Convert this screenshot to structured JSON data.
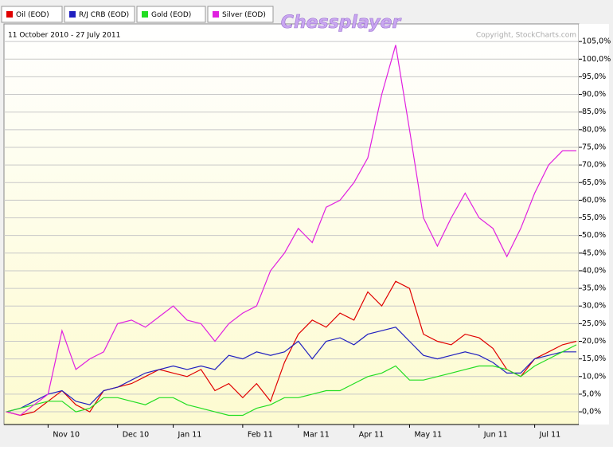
{
  "chart_data": {
    "type": "line",
    "title": "Chessplayer",
    "subtitle": "11 October 2010 - 27 July 2011",
    "annotations": [
      "Copyright, StockCharts.com"
    ],
    "categories": [
      null,
      null,
      null,
      "Nov 10",
      null,
      null,
      null,
      null,
      "Dec 10",
      null,
      null,
      null,
      "Jan 11",
      null,
      null,
      null,
      null,
      "Feb 11",
      null,
      null,
      null,
      "Mar 11",
      null,
      null,
      null,
      "Apr 11",
      null,
      null,
      null,
      "May 11",
      null,
      null,
      null,
      null,
      "Jun 11",
      null,
      null,
      null,
      "Jul 11",
      null,
      null,
      null
    ],
    "series": [
      {
        "name": "Oil (EOD)",
        "color": "#e00000",
        "values": [
          0,
          -1,
          0,
          3,
          6,
          2,
          0,
          6,
          7,
          8,
          10,
          12,
          11,
          10,
          12,
          6,
          8,
          4,
          8,
          3,
          14,
          22,
          26,
          24,
          28,
          26,
          34,
          30,
          37,
          35,
          22,
          20,
          19,
          22,
          21,
          18,
          12,
          10,
          15,
          17,
          19,
          20
        ]
      },
      {
        "name": "R/J CRB (EOD)",
        "color": "#2020c0",
        "values": [
          0,
          1,
          3,
          5,
          6,
          3,
          2,
          6,
          7,
          9,
          11,
          12,
          13,
          12,
          13,
          12,
          16,
          15,
          17,
          16,
          17,
          20,
          15,
          20,
          21,
          19,
          22,
          23,
          24,
          20,
          16,
          15,
          16,
          17,
          16,
          14,
          11,
          11,
          15,
          16,
          17,
          17
        ]
      },
      {
        "name": "Gold (EOD)",
        "color": "#22dd22",
        "values": [
          0,
          1,
          2,
          3,
          3,
          0,
          1,
          4,
          4,
          3,
          2,
          4,
          4,
          2,
          1,
          0,
          -1,
          -1,
          1,
          2,
          4,
          4,
          5,
          6,
          6,
          8,
          10,
          11,
          13,
          9,
          9,
          10,
          11,
          12,
          13,
          13,
          12,
          10,
          13,
          15,
          17,
          19
        ]
      },
      {
        "name": "Silver (EOD)",
        "color": "#e020e0",
        "values": [
          0,
          -1,
          2,
          5,
          23,
          12,
          15,
          17,
          25,
          26,
          24,
          27,
          30,
          26,
          25,
          20,
          25,
          28,
          30,
          40,
          45,
          52,
          48,
          58,
          60,
          65,
          72,
          90,
          104,
          80,
          55,
          47,
          55,
          62,
          55,
          52,
          44,
          52,
          62,
          70,
          74,
          74
        ]
      }
    ],
    "ylim": [
      -3.6,
      110
    ],
    "yticks": [
      {
        "value": 0,
        "label": "0,0%"
      },
      {
        "value": 5,
        "label": "5,0%"
      },
      {
        "value": 10,
        "label": "10,0%"
      },
      {
        "value": 15,
        "label": "15,0%"
      },
      {
        "value": 20,
        "label": "20,0%"
      },
      {
        "value": 25,
        "label": "25,0%"
      },
      {
        "value": 30,
        "label": "30,0%"
      },
      {
        "value": 35,
        "label": "35,0%"
      },
      {
        "value": 40,
        "label": "40,0%"
      },
      {
        "value": 45,
        "label": "45,0%"
      },
      {
        "value": 50,
        "label": "50,0%"
      },
      {
        "value": 55,
        "label": "55,0%"
      },
      {
        "value": 60,
        "label": "60,0%"
      },
      {
        "value": 65,
        "label": "65,0%"
      },
      {
        "value": 70,
        "label": "70,0%"
      },
      {
        "value": 75,
        "label": "75,0%"
      },
      {
        "value": 80,
        "label": "80,0%"
      },
      {
        "value": 85,
        "label": "85,0%"
      },
      {
        "value": 90,
        "label": "90,0%"
      },
      {
        "value": 95,
        "label": "95,0%"
      },
      {
        "value": 100,
        "label": "100,0%"
      },
      {
        "value": 105,
        "label": "105,0%"
      }
    ],
    "grid": true,
    "legend": "top-left"
  }
}
